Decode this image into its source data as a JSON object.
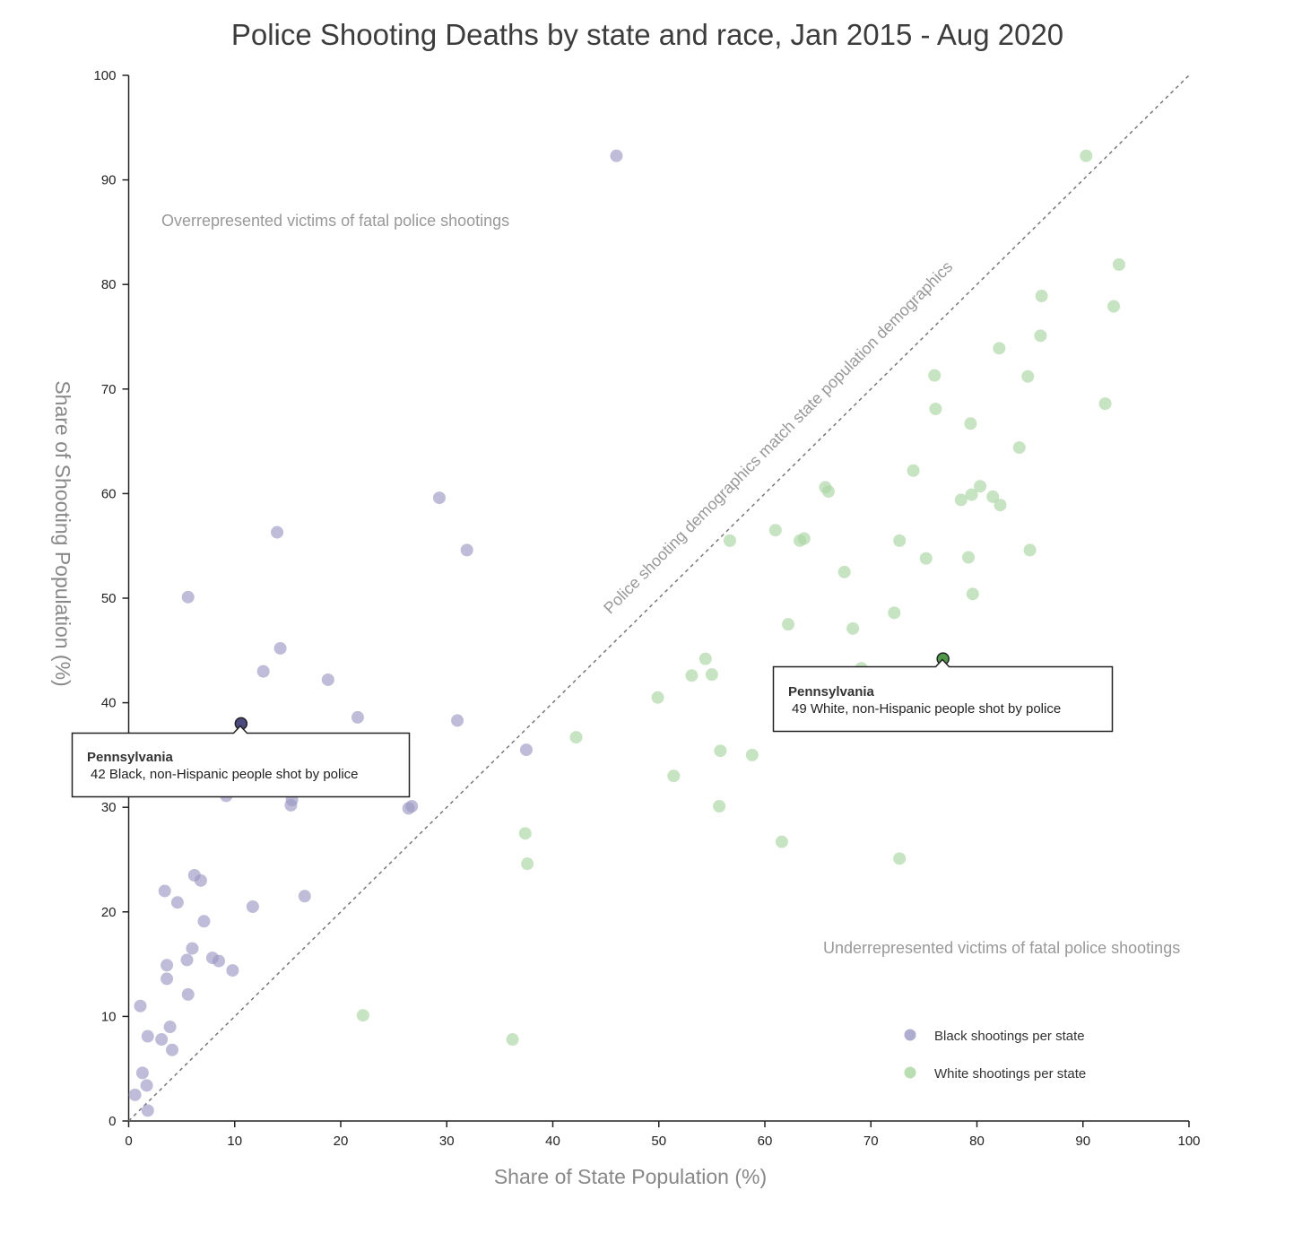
{
  "chart_data": {
    "type": "scatter",
    "title": "Police Shooting Deaths by state and race, Jan 2015 - Aug 2020",
    "xlabel": "Share of State Population (%)",
    "ylabel": "Share of Shooting Population (%)",
    "xlim": [
      0,
      100
    ],
    "ylim": [
      0,
      100
    ],
    "xticks": [
      "0",
      "10",
      "20",
      "30",
      "40",
      "50",
      "60",
      "70",
      "80",
      "90",
      "100"
    ],
    "yticks": [
      "0",
      "10",
      "20",
      "30",
      "40",
      "50",
      "60",
      "70",
      "80",
      "90",
      "100"
    ],
    "grid": false,
    "legend_position": "bottom-right",
    "reference_line": {
      "type": "y=x",
      "label": "Police shooting demographics match state population demographics"
    },
    "annotations": {
      "over": "Overrepresented victims of fatal police shootings",
      "under": "Underrepresented victims of fatal police shootings"
    },
    "series": [
      {
        "name": "Black shootings per state",
        "color": "#9b98c3",
        "highlight_color": "#4b4a7e",
        "points": [
          [
            46.0,
            92.3
          ],
          [
            29.3,
            59.6
          ],
          [
            14.0,
            56.3
          ],
          [
            31.9,
            54.6
          ],
          [
            5.6,
            50.1
          ],
          [
            14.3,
            45.2
          ],
          [
            12.7,
            43.0
          ],
          [
            18.8,
            42.2
          ],
          [
            21.6,
            38.6
          ],
          [
            31.0,
            38.3
          ],
          [
            10.6,
            38.0
          ],
          [
            37.5,
            35.5
          ],
          [
            12.1,
            35.6
          ],
          [
            11.5,
            34.4
          ],
          [
            13.6,
            31.8
          ],
          [
            9.2,
            31.1
          ],
          [
            15.4,
            30.7
          ],
          [
            15.3,
            30.2
          ],
          [
            26.7,
            30.1
          ],
          [
            26.4,
            29.9
          ],
          [
            6.2,
            23.5
          ],
          [
            6.8,
            23.0
          ],
          [
            3.4,
            22.0
          ],
          [
            16.6,
            21.5
          ],
          [
            4.6,
            20.9
          ],
          [
            11.7,
            20.5
          ],
          [
            7.1,
            19.1
          ],
          [
            6.0,
            16.5
          ],
          [
            7.9,
            15.6
          ],
          [
            8.5,
            15.3
          ],
          [
            5.5,
            15.4
          ],
          [
            3.6,
            14.9
          ],
          [
            9.8,
            14.4
          ],
          [
            3.6,
            13.6
          ],
          [
            5.6,
            12.1
          ],
          [
            1.1,
            11.0
          ],
          [
            3.9,
            9.0
          ],
          [
            1.8,
            8.1
          ],
          [
            3.1,
            7.8
          ],
          [
            4.1,
            6.8
          ],
          [
            1.3,
            4.6
          ],
          [
            1.7,
            3.4
          ],
          [
            0.6,
            2.5
          ],
          [
            1.8,
            1.0
          ],
          [
            62.6,
            38.6
          ]
        ],
        "highlight": {
          "state": "Pennsylvania",
          "x": 10.6,
          "y": 38.0,
          "tooltip": "42 Black, non-Hispanic people shot by police"
        }
      },
      {
        "name": "White shootings per state",
        "color": "#a9d6a1",
        "highlight_color": "#4f9a49",
        "points": [
          [
            90.3,
            92.3
          ],
          [
            93.4,
            81.9
          ],
          [
            86.1,
            78.9
          ],
          [
            92.9,
            77.9
          ],
          [
            86.0,
            75.1
          ],
          [
            82.1,
            73.9
          ],
          [
            76.0,
            71.3
          ],
          [
            84.8,
            71.2
          ],
          [
            76.1,
            68.1
          ],
          [
            92.1,
            68.6
          ],
          [
            79.4,
            66.7
          ],
          [
            84.0,
            64.4
          ],
          [
            74.0,
            62.2
          ],
          [
            65.7,
            60.6
          ],
          [
            66.0,
            60.2
          ],
          [
            80.3,
            60.7
          ],
          [
            79.5,
            59.9
          ],
          [
            81.5,
            59.7
          ],
          [
            78.5,
            59.4
          ],
          [
            82.2,
            58.9
          ],
          [
            56.7,
            55.5
          ],
          [
            61.0,
            56.5
          ],
          [
            63.3,
            55.5
          ],
          [
            63.7,
            55.7
          ],
          [
            72.7,
            55.5
          ],
          [
            85.0,
            54.6
          ],
          [
            75.2,
            53.8
          ],
          [
            79.2,
            53.9
          ],
          [
            67.5,
            52.5
          ],
          [
            79.6,
            50.4
          ],
          [
            72.2,
            48.6
          ],
          [
            62.2,
            47.5
          ],
          [
            68.3,
            47.1
          ],
          [
            69.1,
            43.3
          ],
          [
            54.4,
            44.2
          ],
          [
            53.1,
            42.6
          ],
          [
            55.0,
            42.7
          ],
          [
            49.9,
            40.5
          ],
          [
            42.2,
            36.7
          ],
          [
            55.8,
            35.4
          ],
          [
            58.8,
            35.0
          ],
          [
            51.4,
            33.0
          ],
          [
            55.7,
            30.1
          ],
          [
            37.4,
            27.5
          ],
          [
            61.6,
            26.7
          ],
          [
            72.7,
            25.1
          ],
          [
            37.6,
            24.6
          ],
          [
            22.1,
            10.1
          ],
          [
            36.2,
            7.8
          ],
          [
            76.8,
            44.2
          ]
        ],
        "highlight": {
          "state": "Pennsylvania",
          "x": 76.8,
          "y": 44.2,
          "tooltip": "49 White, non-Hispanic people shot by police"
        }
      }
    ]
  }
}
